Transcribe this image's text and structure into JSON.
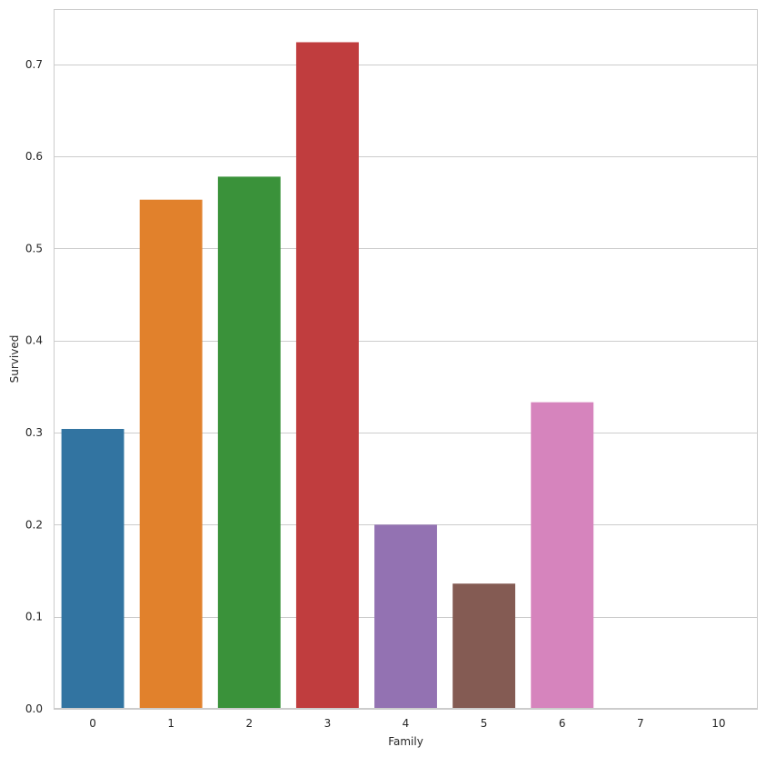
{
  "chart_data": {
    "type": "bar",
    "title": "",
    "xlabel": "Family",
    "ylabel": "Survived",
    "categories": [
      "0",
      "1",
      "2",
      "3",
      "4",
      "5",
      "6",
      "7",
      "10"
    ],
    "values": [
      0.304,
      0.553,
      0.578,
      0.724,
      0.2,
      0.136,
      0.333,
      0.0,
      0.0
    ],
    "ylim": [
      0,
      0.76
    ],
    "yticks": [
      "0.0",
      "0.1",
      "0.2",
      "0.3",
      "0.4",
      "0.5",
      "0.6",
      "0.7"
    ],
    "grid": "y",
    "legend": "none",
    "colors": [
      "#3274a1",
      "#e1812c",
      "#3a923a",
      "#c03d3e",
      "#9372b2",
      "#845b53",
      "#d684bd",
      "#7f7f7f",
      "#a9aa35"
    ],
    "frame_color": "#cccccc",
    "grid_color": "#cccccc"
  }
}
